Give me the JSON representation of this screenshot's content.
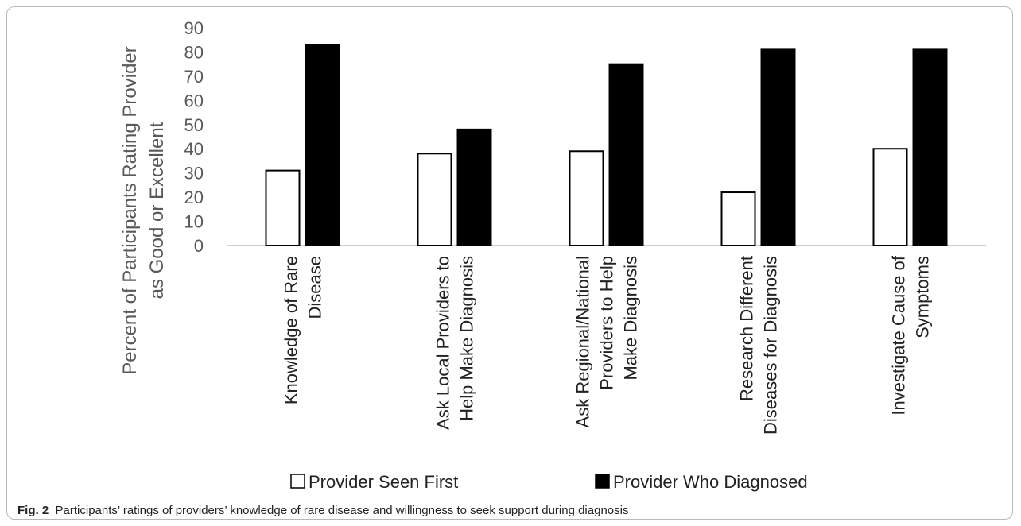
{
  "chart_data": {
    "type": "bar",
    "ylabel_lines": [
      "Percent of Participants Rating Provider",
      "as Good or Excellent"
    ],
    "ylim": [
      0,
      90
    ],
    "yticks": [
      0,
      10,
      20,
      30,
      40,
      50,
      60,
      70,
      80,
      90
    ],
    "categories": [
      [
        "Knowledge of Rare",
        "Disease"
      ],
      [
        "Ask Local Providers to",
        "Help Make Diagnosis"
      ],
      [
        "Ask Regional/National",
        "Providers to Help",
        "Make Diagnosis"
      ],
      [
        "Research Different",
        "Diseases for Diagnosis"
      ],
      [
        "Investigate Cause of",
        "Symptoms"
      ]
    ],
    "series": [
      {
        "name": "Provider Seen First",
        "color": "#ffffff",
        "values": [
          31,
          38,
          39,
          22,
          40
        ]
      },
      {
        "name": "Provider Who Diagnosed",
        "color": "#000000",
        "values": [
          83,
          48,
          75,
          81,
          81
        ]
      }
    ],
    "legend_position": "bottom",
    "grid": false
  },
  "caption": {
    "label": "Fig. 2",
    "text": "Participants’ ratings of providers’ knowledge of rare disease and willingness to seek support during diagnosis"
  }
}
